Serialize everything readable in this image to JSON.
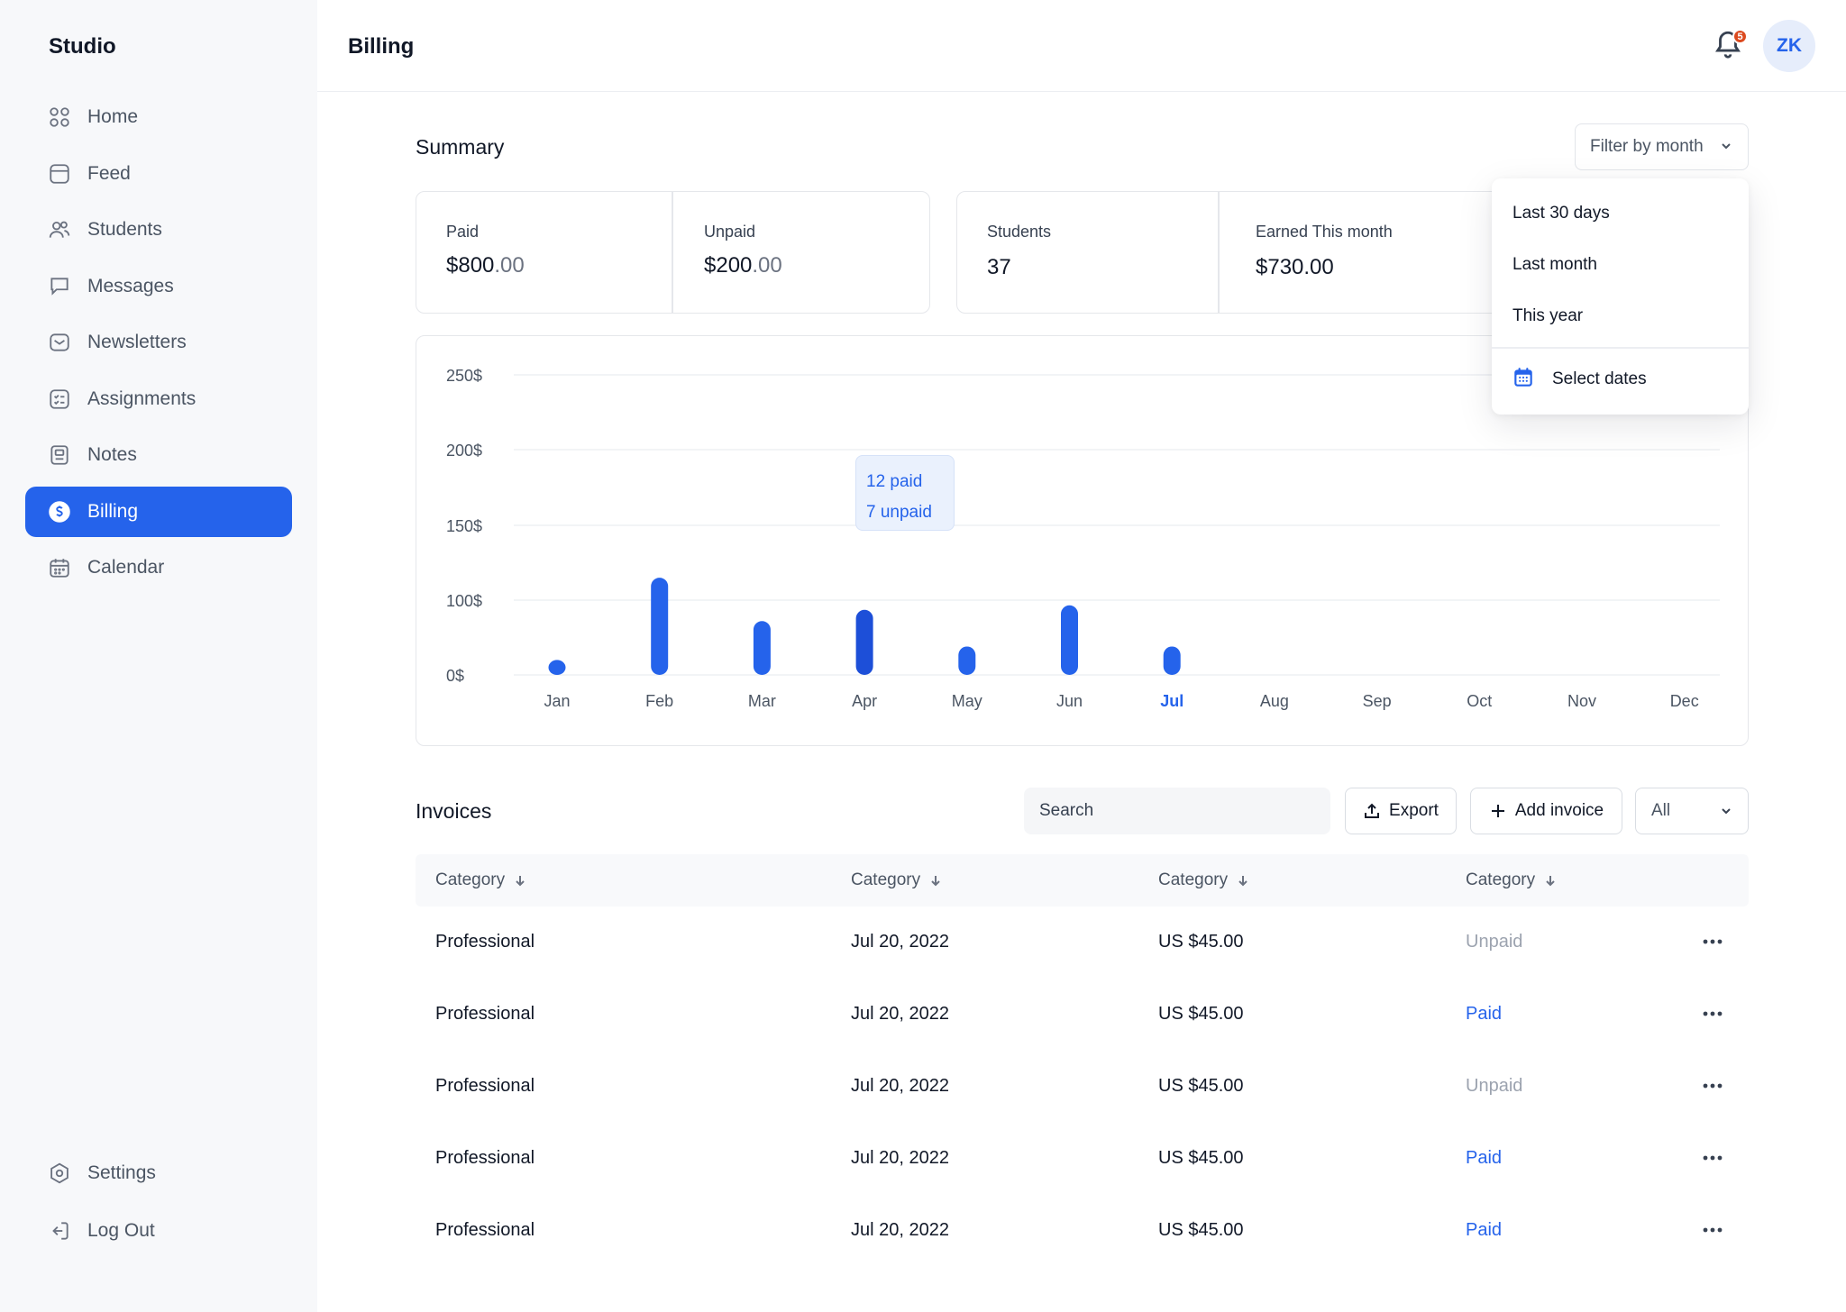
{
  "app": {
    "brand": "Studio",
    "page_title": "Billing"
  },
  "sidebar": {
    "items": [
      {
        "label": "Home",
        "icon": "grid-icon"
      },
      {
        "label": "Feed",
        "icon": "feed-icon"
      },
      {
        "label": "Students",
        "icon": "users-icon"
      },
      {
        "label": "Messages",
        "icon": "chat-icon"
      },
      {
        "label": "Newsletters",
        "icon": "mail-icon"
      },
      {
        "label": "Assignments",
        "icon": "checklist-icon"
      },
      {
        "label": "Notes",
        "icon": "notebook-icon"
      },
      {
        "label": "Billing",
        "icon": "dollar-coin-icon",
        "active": true
      },
      {
        "label": "Calendar",
        "icon": "calendar-icon"
      }
    ],
    "bottom": [
      {
        "label": "Settings",
        "icon": "settings-icon"
      },
      {
        "label": "Log Out",
        "icon": "logout-icon"
      }
    ]
  },
  "header": {
    "notifications_count": "5",
    "avatar_initials": "ZK"
  },
  "summary": {
    "title": "Summary",
    "filter_label": "Filter by month",
    "paid": {
      "label": "Paid",
      "dollars": "$800",
      "cents": ".00"
    },
    "unpaid": {
      "label": "Unpaid",
      "dollars": "$200",
      "cents": ".00"
    },
    "students": {
      "label": "Students",
      "value": "37"
    },
    "earned": {
      "label": "Earned This month",
      "value": "$730.00"
    }
  },
  "filter_menu": {
    "items": [
      "Last 30 days",
      "Last month",
      "This year"
    ],
    "select_dates": "Select dates"
  },
  "chart_data": {
    "type": "bar",
    "categories": [
      "Jan",
      "Feb",
      "Mar",
      "Apr",
      "May",
      "Jun",
      "Jul",
      "Aug",
      "Sep",
      "Oct",
      "Nov",
      "Dec"
    ],
    "values": [
      20,
      115,
      72,
      87,
      38,
      93,
      38,
      null,
      null,
      null,
      null,
      null
    ],
    "y_ticks": [
      "0$",
      "100$",
      "150$",
      "200$",
      "250$"
    ],
    "highlighted_category": "Jul",
    "hovered_category": "Apr",
    "tooltip": {
      "paid": "12 paid",
      "unpaid": "7 unpaid"
    },
    "bar_color": "#2563eb",
    "hover_bar_color": "#1d4fd8",
    "grid": true
  },
  "invoices": {
    "title": "Invoices",
    "search_placeholder": "Search",
    "export_label": "Export",
    "add_label": "Add invoice",
    "status_filter": "All",
    "columns": [
      "Category",
      "Category",
      "Category",
      "Category"
    ],
    "rows": [
      {
        "category": "Professional",
        "date": "Jul 20, 2022",
        "amount": "US $45.00",
        "status": "Unpaid"
      },
      {
        "category": "Professional",
        "date": "Jul 20, 2022",
        "amount": "US $45.00",
        "status": "Paid"
      },
      {
        "category": "Professional",
        "date": "Jul 20, 2022",
        "amount": "US $45.00",
        "status": "Unpaid"
      },
      {
        "category": "Professional",
        "date": "Jul 20, 2022",
        "amount": "US $45.00",
        "status": "Paid"
      },
      {
        "category": "Professional",
        "date": "Jul 20, 2022",
        "amount": "US $45.00",
        "status": "Paid"
      }
    ]
  },
  "colors": {
    "accent": "#2563eb",
    "muted": "#9ca3af",
    "sidebar_bg": "#f7f8fa"
  }
}
